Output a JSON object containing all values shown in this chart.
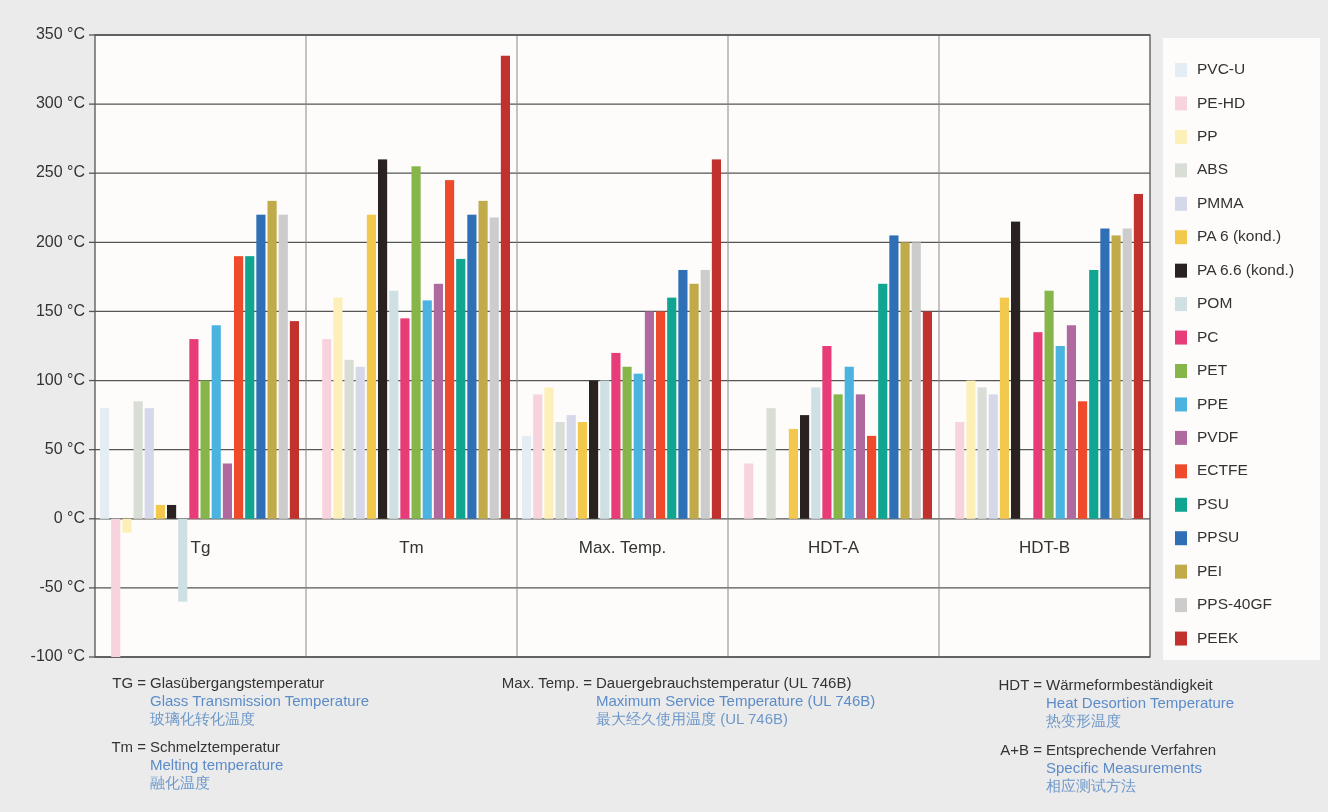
{
  "chart_data": {
    "type": "bar",
    "categories": [
      "Tg",
      "Tm",
      "Max. Temp.",
      "HDT-A",
      "HDT-B"
    ],
    "ylim": [
      -100,
      350
    ],
    "yticks": [
      {
        "value": -100,
        "label": "-100 °C"
      },
      {
        "value": -50,
        "label": "-50 °C"
      },
      {
        "value": 0,
        "label": "0 °C"
      },
      {
        "value": 50,
        "label": "50 °C"
      },
      {
        "value": 100,
        "label": "100 °C"
      },
      {
        "value": 150,
        "label": "150 °C"
      },
      {
        "value": 200,
        "label": "200 °C"
      },
      {
        "value": 250,
        "label": "250 °C"
      },
      {
        "value": 300,
        "label": "300 °C"
      },
      {
        "value": 350,
        "label": "350 °C"
      }
    ],
    "grid": true,
    "legend": "right",
    "series": [
      {
        "name": "PVC-U",
        "color": "#e3edf3",
        "values": [
          80,
          null,
          60,
          null,
          null
        ]
      },
      {
        "name": "PE-HD",
        "color": "#f7d3dd",
        "values": [
          -100,
          130,
          90,
          40,
          70
        ]
      },
      {
        "name": "PP",
        "color": "#fcf0b8",
        "values": [
          -10,
          160,
          95,
          null,
          100
        ]
      },
      {
        "name": "ABS",
        "color": "#d8ddd5",
        "values": [
          85,
          115,
          70,
          80,
          95
        ]
      },
      {
        "name": "PMMA",
        "color": "#d4d8e8",
        "values": [
          80,
          110,
          75,
          null,
          90
        ]
      },
      {
        "name": "PA 6 (kond.)",
        "color": "#f2c94c",
        "values": [
          10,
          220,
          70,
          65,
          160
        ]
      },
      {
        "name": "PA 6.6 (kond.)",
        "color": "#2a2220",
        "values": [
          10,
          260,
          100,
          75,
          215
        ]
      },
      {
        "name": "POM",
        "color": "#cfe0e4",
        "values": [
          -60,
          165,
          100,
          95,
          null
        ]
      },
      {
        "name": "PC",
        "color": "#e83c78",
        "values": [
          130,
          145,
          120,
          125,
          135
        ]
      },
      {
        "name": "PET",
        "color": "#86b54a",
        "values": [
          100,
          255,
          110,
          90,
          165
        ]
      },
      {
        "name": "PPE",
        "color": "#4ab3df",
        "values": [
          140,
          158,
          105,
          110,
          125
        ]
      },
      {
        "name": "PVDF",
        "color": "#b0699e",
        "values": [
          40,
          170,
          150,
          90,
          140
        ]
      },
      {
        "name": "ECTFE",
        "color": "#ef4a2c",
        "values": [
          190,
          245,
          150,
          60,
          85
        ]
      },
      {
        "name": "PSU",
        "color": "#0fa591",
        "values": [
          190,
          188,
          160,
          170,
          180
        ]
      },
      {
        "name": "PPSU",
        "color": "#2f6fb5",
        "values": [
          220,
          220,
          180,
          205,
          210
        ]
      },
      {
        "name": "PEI",
        "color": "#c0aa4a",
        "values": [
          230,
          230,
          170,
          200,
          205
        ]
      },
      {
        "name": "PPS-40GF",
        "color": "#cccccc",
        "values": [
          220,
          218,
          180,
          200,
          210
        ]
      },
      {
        "name": "PEEK",
        "color": "#c1312e",
        "values": [
          143,
          335,
          260,
          150,
          235
        ]
      }
    ],
    "annotations": [
      "TG =",
      "Glasübergangstemperatur",
      "Glass Transmission Temperature",
      "玻璃化转化温度",
      "Tm =",
      "Schmelztemperatur",
      "Melting temperature",
      "融化温度",
      "Max. Temp. =",
      "Dauergebrauchstemperatur (UL 746B)",
      "Maximum Service Temperature (UL 746B)",
      "最大经久使用温度 (UL 746B)",
      "HDT =",
      "Wärmeformbeständigkeit",
      "Heat Desortion Temperature",
      "热变形温度",
      "A+B =",
      "Entsprechende Verfahren",
      "Specific Measurements",
      "相应测试方法"
    ]
  }
}
